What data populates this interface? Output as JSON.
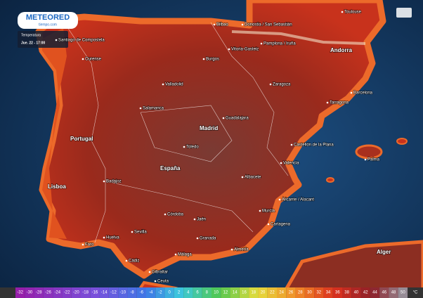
{
  "header": {
    "logo": "METEORED",
    "site": "tiempo.com",
    "layer": "Temperatura",
    "time": "Jue. 22 - 17:00"
  },
  "cities": [
    {
      "name": "Toulouse"
    },
    {
      "name": "Andorra",
      "major": true
    },
    {
      "name": "Bilbao"
    },
    {
      "name": "Donostia / San Sebastián"
    },
    {
      "name": "Pamplona / Iruña"
    },
    {
      "name": "Vitoria-Gasteiz"
    },
    {
      "name": "Burgos"
    },
    {
      "name": "Ourense"
    },
    {
      "name": "Santiago de Compostela"
    },
    {
      "name": "Valladolid"
    },
    {
      "name": "Zaragoza"
    },
    {
      "name": "Barcelona"
    },
    {
      "name": "Tarragona"
    },
    {
      "name": "Salamanca"
    },
    {
      "name": "Guadalajara"
    },
    {
      "name": "Madrid",
      "major": true
    },
    {
      "name": "Toledo"
    },
    {
      "name": "Portugal",
      "major": true
    },
    {
      "name": "España",
      "major": true
    },
    {
      "name": "Castellón de la Plana"
    },
    {
      "name": "Valencia"
    },
    {
      "name": "Palma"
    },
    {
      "name": "Lisboa",
      "major": true
    },
    {
      "name": "Badajoz"
    },
    {
      "name": "Albacete"
    },
    {
      "name": "Alicante / Alacant"
    },
    {
      "name": "Córdoba"
    },
    {
      "name": "Jaén"
    },
    {
      "name": "Sevilla"
    },
    {
      "name": "Granada"
    },
    {
      "name": "Murcia"
    },
    {
      "name": "Cartagena"
    },
    {
      "name": "Faro"
    },
    {
      "name": "Huelva"
    },
    {
      "name": "Cádiz"
    },
    {
      "name": "Málaga"
    },
    {
      "name": "Almería"
    },
    {
      "name": "Gibraltar"
    },
    {
      "name": "Ceuta"
    },
    {
      "name": "Alger",
      "major": true
    }
  ],
  "legend": {
    "values": [
      -32,
      -30,
      -28,
      -26,
      -24,
      -22,
      -20,
      -18,
      -16,
      -14,
      -12,
      -10,
      -8,
      -6,
      -4,
      -2,
      0,
      2,
      4,
      6,
      8,
      10,
      12,
      14,
      16,
      18,
      20,
      22,
      24,
      26,
      28,
      30,
      32,
      34,
      36,
      38,
      40,
      42,
      44,
      46,
      48,
      50
    ],
    "unit": "°C"
  }
}
